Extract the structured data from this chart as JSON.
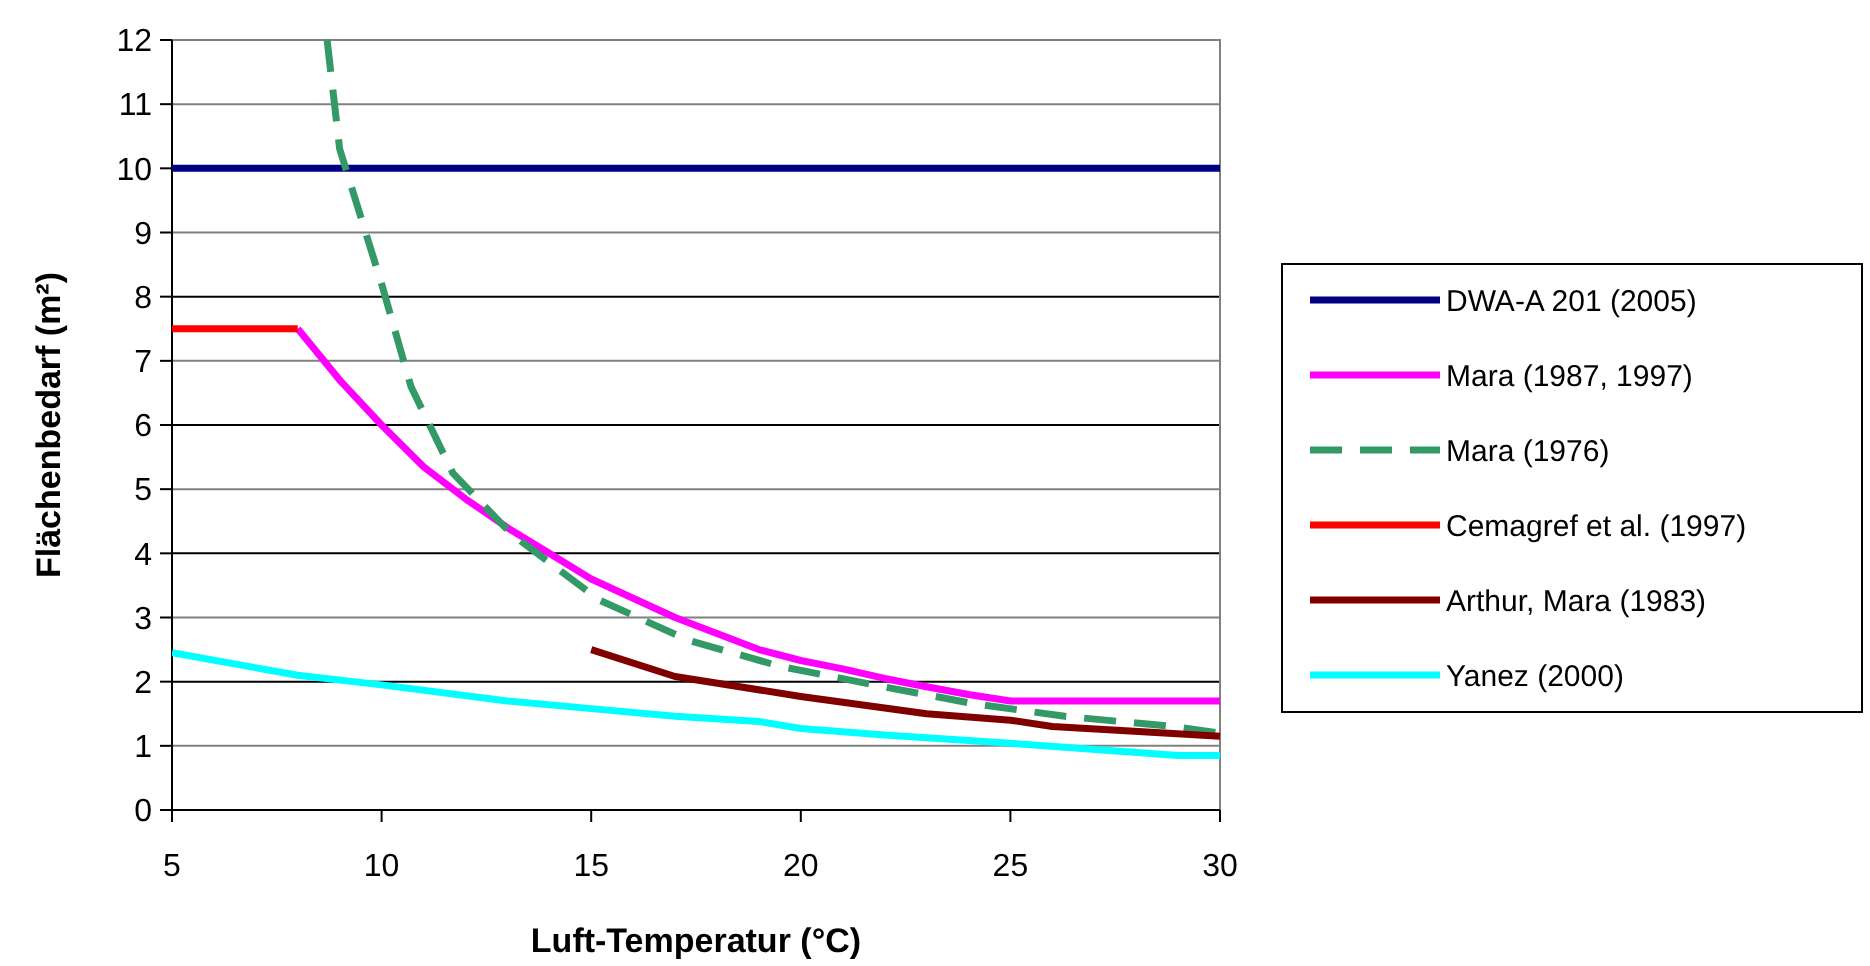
{
  "chart_data": {
    "type": "line",
    "xlabel": "Luft-Temperatur (°C)",
    "ylabel": "Flächenbedarf (m²)",
    "xlim": [
      5,
      30
    ],
    "xticks": [
      5,
      10,
      15,
      20,
      25,
      30
    ],
    "ylim": [
      0,
      12
    ],
    "yticks": [
      0,
      1,
      2,
      3,
      4,
      5,
      6,
      7,
      8,
      9,
      10,
      11,
      12
    ],
    "grid": "y",
    "legend": "right",
    "series": [
      {
        "name": "DWA-A 201 (2005)",
        "color": "#000080",
        "x": [
          5,
          30
        ],
        "values": [
          10,
          10
        ]
      },
      {
        "name": "Mara (1987, 1997)",
        "color": "#ff00ff",
        "x": [
          8,
          9,
          10,
          11,
          12,
          13,
          14,
          15,
          16,
          17,
          18,
          19,
          20,
          21,
          22,
          23,
          24,
          25,
          30
        ],
        "values": [
          7.5,
          6.7,
          6.0,
          5.35,
          4.85,
          4.4,
          4.0,
          3.6,
          3.3,
          3.0,
          2.75,
          2.5,
          2.33,
          2.2,
          2.05,
          1.92,
          1.8,
          1.7,
          1.7
        ]
      },
      {
        "name": "Mara (1976)",
        "color": "#339966",
        "line_style": "dashed",
        "x": [
          8.7,
          9,
          10,
          10.7,
          11.7,
          13.1,
          15.2,
          17.3,
          19.5,
          21.9,
          24.1,
          26.3,
          28.9,
          30
        ],
        "values": [
          12,
          10.3,
          8.2,
          6.6,
          5.25,
          4.3,
          3.27,
          2.65,
          2.24,
          1.93,
          1.66,
          1.46,
          1.3,
          1.2
        ]
      },
      {
        "name": "Cemagref et al. (1997)",
        "color": "#ff0000",
        "x": [
          5,
          8
        ],
        "values": [
          7.5,
          7.5
        ]
      },
      {
        "name": "Arthur, Mara (1983)",
        "color": "#800000",
        "x": [
          15,
          17,
          20,
          23,
          25,
          26,
          30
        ],
        "values": [
          2.5,
          2.08,
          1.77,
          1.5,
          1.4,
          1.3,
          1.15
        ]
      },
      {
        "name": "Yanez (2000)",
        "color": "#00ffff",
        "x": [
          5,
          8,
          10,
          13,
          15,
          17,
          19,
          20,
          22,
          25,
          29,
          30
        ],
        "values": [
          2.45,
          2.1,
          1.95,
          1.7,
          1.58,
          1.46,
          1.38,
          1.27,
          1.17,
          1.04,
          0.85,
          0.85
        ]
      }
    ]
  }
}
